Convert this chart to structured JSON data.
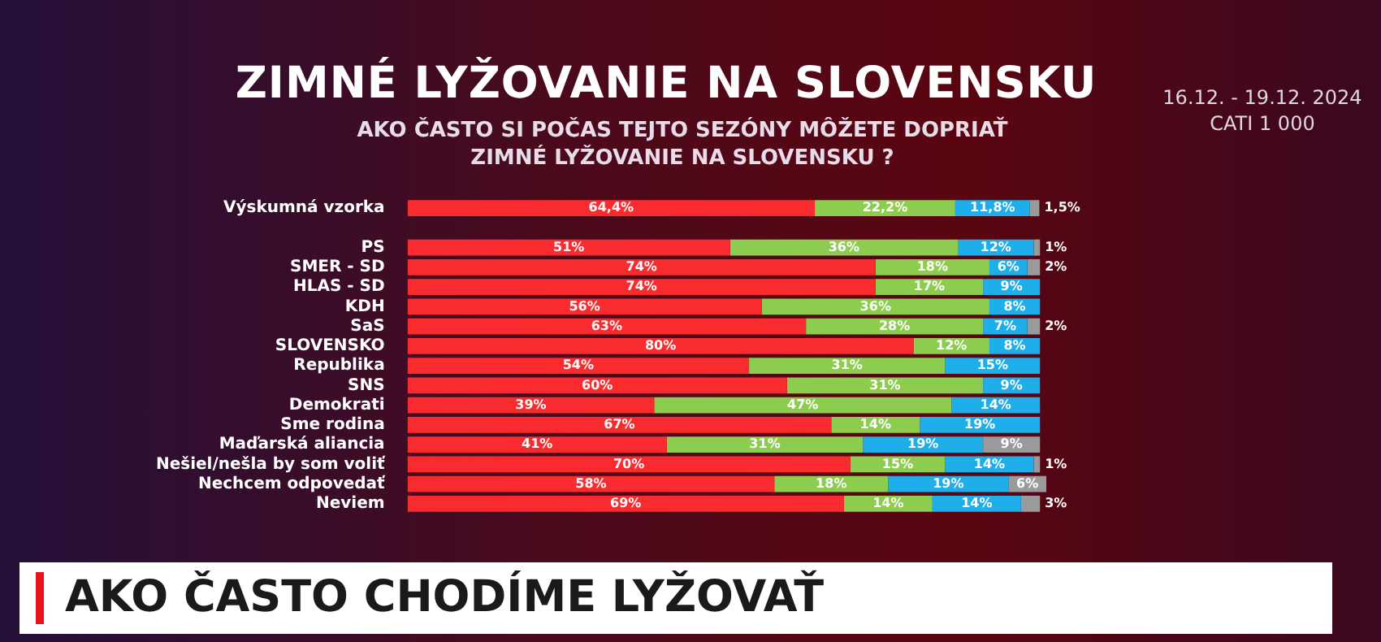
{
  "chart_data": {
    "type": "bar",
    "orientation": "horizontal",
    "stacked": true,
    "title": "ZIMNÉ LYŽOVANIE NA SLOVENSKU",
    "subtitle": "AKO ČASTO SI POČAS TEJTO SEZÓNY MÔŽETE DOPRIAŤ ZIMNÉ LYŽOVANIE NA SLOVENSKU ?",
    "annotations": [
      "16.12. - 19.12. 2024",
      "CATI 1 000",
      "AKO ČASTO CHODÍME LYŽOVAŤ"
    ],
    "categories": [
      "Výskumná vzorka",
      null,
      "PS",
      "SMER - SD",
      "HLAS - SD",
      "KDH",
      "SaS",
      "SLOVENSKO",
      "Republika",
      "SNS",
      "Demokrati",
      "Sme rodina",
      "Maďarská aliancia",
      "Nešiel/nešla by som voliť",
      "Nechcem odpovedať",
      "Neviem"
    ],
    "xlim": [
      0,
      101
    ],
    "tick_labels": "y",
    "series": [
      {
        "color": "#fa2b2e",
        "values": [
          64.4,
          null,
          51,
          74,
          74,
          56,
          63,
          80,
          54,
          60,
          39,
          67,
          41,
          70,
          58,
          69
        ],
        "value_labels": [
          "64,4%",
          null,
          "51%",
          "74%",
          "74%",
          "56%",
          "63%",
          "80%",
          "54%",
          "60%",
          "39%",
          "67%",
          "41%",
          "70%",
          "58%",
          "69%"
        ]
      },
      {
        "color": "#8ccc4e",
        "values": [
          22.2,
          null,
          36,
          18,
          17,
          36,
          28,
          12,
          31,
          31,
          47,
          14,
          31,
          15,
          18,
          14
        ],
        "value_labels": [
          "22,2%",
          null,
          "36%",
          "18%",
          "17%",
          "36%",
          "28%",
          "12%",
          "31%",
          "31%",
          "47%",
          "14%",
          "31%",
          "15%",
          "18%",
          "14%"
        ]
      },
      {
        "color": "#1eaeea",
        "values": [
          11.8,
          null,
          12,
          6,
          9,
          8,
          7,
          8,
          15,
          9,
          14,
          19,
          19,
          14,
          19,
          14
        ],
        "value_labels": [
          "11,8%",
          null,
          "12%",
          "6%",
          "9%",
          "8%",
          "7%",
          "8%",
          "15%",
          "9%",
          "14%",
          "19%",
          "19%",
          "14%",
          "19%",
          "14%"
        ]
      },
      {
        "color": "#9a9a9a",
        "values": [
          1.5,
          null,
          1,
          2,
          null,
          null,
          2,
          null,
          null,
          null,
          null,
          null,
          9,
          1,
          6,
          3
        ],
        "value_labels": [
          "1,5%",
          null,
          "1%",
          "2%",
          null,
          null,
          "2%",
          null,
          null,
          null,
          null,
          null,
          "9%",
          "1%",
          "6%",
          "3%"
        ]
      }
    ]
  }
}
